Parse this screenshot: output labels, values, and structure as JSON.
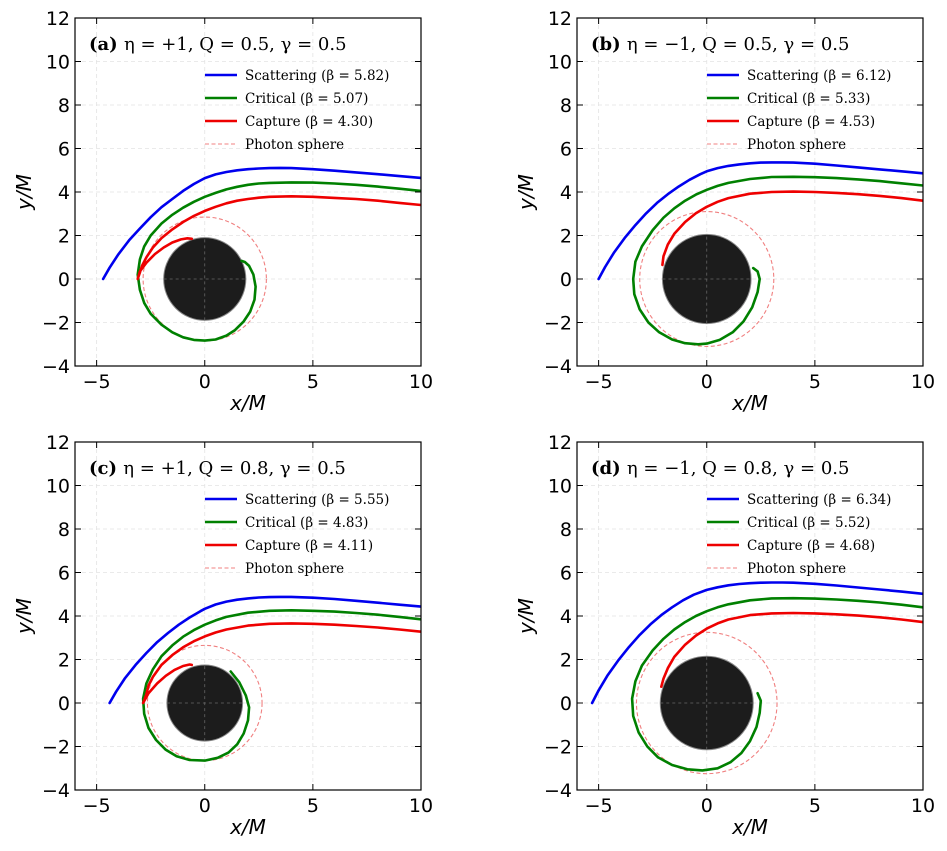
{
  "figure": {
    "background": "#ffffff",
    "grid": true,
    "tick_direction": "in"
  },
  "chart_data": [
    {
      "type": "line",
      "label": "(a)",
      "title": "η = +1, Q = 0.5, γ = 0.5",
      "xlabel": "x/M",
      "ylabel": "y/M",
      "xlim": [
        -6,
        10
      ],
      "ylim": [
        -4,
        12
      ],
      "xticks": [
        -5,
        0,
        5,
        10
      ],
      "xtick_labels": [
        "−5",
        "0",
        "5",
        "10"
      ],
      "yticks": [
        -4,
        -2,
        0,
        2,
        4,
        6,
        8,
        10,
        12
      ],
      "ytick_labels": [
        "−4",
        "−2",
        "0",
        "2",
        "4",
        "6",
        "8",
        "10",
        "12"
      ],
      "horizon_radius": 1.9,
      "photon_sphere_radius": 2.85,
      "series": [
        {
          "name": "Scattering",
          "legend": "Scattering (β = 5.82)",
          "beta": 5.82,
          "color": "#0000ee",
          "x": [
            -4.7,
            -4.4,
            -4.0,
            -3.5,
            -3.0,
            -2.5,
            -2.0,
            -1.5,
            -1.0,
            -0.5,
            0,
            0.5,
            1,
            1.5,
            2,
            2.5,
            3,
            3.5,
            4,
            5,
            6,
            7,
            8,
            9,
            10
          ],
          "y": [
            0,
            0.52,
            1.13,
            1.78,
            2.32,
            2.84,
            3.3,
            3.68,
            4.05,
            4.37,
            4.64,
            4.81,
            4.92,
            5.0,
            5.05,
            5.08,
            5.1,
            5.11,
            5.1,
            5.05,
            4.98,
            4.9,
            4.82,
            4.73,
            4.65
          ]
        },
        {
          "name": "Critical",
          "legend": "Critical (β = 5.07)",
          "beta": 5.07,
          "color": "#008000",
          "x": [
            10,
            9,
            8,
            7,
            6,
            5,
            4,
            3,
            2.5,
            2,
            1.5,
            1,
            0.5,
            0,
            -0.5,
            -1,
            -1.5,
            -2,
            -2.5,
            -2.8,
            -3.0,
            -3.1,
            -3.0,
            -2.8,
            -2.5,
            -2.0,
            -1.5,
            -1.0,
            -0.5,
            0,
            0.5,
            1.0,
            1.4,
            1.8,
            2.1,
            2.3,
            2.35,
            2.25,
            2.05,
            1.85,
            1.7
          ],
          "y": [
            4.05,
            4.15,
            4.25,
            4.33,
            4.39,
            4.43,
            4.44,
            4.42,
            4.39,
            4.33,
            4.24,
            4.12,
            3.96,
            3.78,
            3.55,
            3.28,
            2.95,
            2.55,
            2.0,
            1.5,
            0.9,
            0.2,
            -0.5,
            -1.1,
            -1.6,
            -2.1,
            -2.45,
            -2.68,
            -2.8,
            -2.83,
            -2.78,
            -2.6,
            -2.35,
            -1.95,
            -1.5,
            -0.95,
            -0.35,
            0.2,
            0.6,
            0.78,
            0.83
          ]
        },
        {
          "name": "Capture",
          "legend": "Capture (β = 4.30)",
          "beta": 4.3,
          "color": "#ee0000",
          "x": [
            10,
            9,
            8,
            7,
            6,
            5,
            4,
            3,
            2.5,
            2,
            1.5,
            1,
            0.5,
            0,
            -0.5,
            -1,
            -1.5,
            -2,
            -2.4,
            -2.7,
            -2.9,
            -3.0,
            -3.1,
            -3.0,
            -2.7,
            -2.3,
            -1.9,
            -1.5,
            -1.1,
            -0.8,
            -0.6
          ],
          "y": [
            3.4,
            3.5,
            3.6,
            3.68,
            3.73,
            3.78,
            3.8,
            3.78,
            3.74,
            3.68,
            3.6,
            3.48,
            3.32,
            3.13,
            2.9,
            2.62,
            2.28,
            1.88,
            1.45,
            1.0,
            0.6,
            0.3,
            0.0,
            0.35,
            0.75,
            1.15,
            1.45,
            1.68,
            1.82,
            1.87,
            1.85
          ]
        },
        {
          "name": "Photon sphere",
          "legend": "Photon sphere",
          "color": "#f08080",
          "style": "dashed"
        }
      ]
    },
    {
      "type": "line",
      "label": "(b)",
      "title": "η = −1, Q = 0.5, γ = 0.5",
      "xlabel": "x/M",
      "ylabel": "y/M",
      "xlim": [
        -6,
        10
      ],
      "ylim": [
        -4,
        12
      ],
      "xticks": [
        -5,
        0,
        5,
        10
      ],
      "xtick_labels": [
        "−5",
        "0",
        "5",
        "10"
      ],
      "yticks": [
        -4,
        -2,
        0,
        2,
        4,
        6,
        8,
        10,
        12
      ],
      "ytick_labels": [
        "−4",
        "−2",
        "0",
        "2",
        "4",
        "6",
        "8",
        "10",
        "12"
      ],
      "horizon_radius": 2.05,
      "photon_sphere_radius": 3.1,
      "series": [
        {
          "name": "Scattering",
          "legend": "Scattering (β = 6.12)",
          "beta": 6.12,
          "color": "#0000ee",
          "x": [
            -5.0,
            -4.7,
            -4.3,
            -3.8,
            -3.3,
            -2.8,
            -2.3,
            -1.8,
            -1.3,
            -0.8,
            -0.3,
            0,
            0.5,
            1,
            1.5,
            2,
            2.5,
            3,
            3.5,
            4,
            5,
            6,
            7,
            8,
            9,
            10
          ],
          "y": [
            0,
            0.55,
            1.2,
            1.88,
            2.48,
            3.02,
            3.5,
            3.9,
            4.25,
            4.56,
            4.82,
            4.95,
            5.1,
            5.2,
            5.27,
            5.32,
            5.35,
            5.36,
            5.36,
            5.35,
            5.3,
            5.22,
            5.13,
            5.04,
            4.95,
            4.86
          ]
        },
        {
          "name": "Critical",
          "legend": "Critical (β = 5.33)",
          "beta": 5.33,
          "color": "#008000",
          "x": [
            10,
            9,
            8,
            7,
            6,
            5,
            4,
            3,
            2,
            1,
            0.5,
            0,
            -0.5,
            -1,
            -1.5,
            -2,
            -2.5,
            -3,
            -3.3,
            -3.4,
            -3.35,
            -3.1,
            -2.7,
            -2.2,
            -1.6,
            -1,
            -0.4,
            0,
            0.6,
            1.2,
            1.7,
            2.1,
            2.35,
            2.45,
            2.35,
            2.15
          ],
          "y": [
            4.3,
            4.4,
            4.5,
            4.58,
            4.64,
            4.68,
            4.7,
            4.69,
            4.6,
            4.42,
            4.28,
            4.1,
            3.88,
            3.6,
            3.25,
            2.82,
            2.25,
            1.5,
            0.8,
            0.0,
            -0.7,
            -1.4,
            -2.0,
            -2.45,
            -2.78,
            -2.95,
            -3.0,
            -2.97,
            -2.8,
            -2.45,
            -1.95,
            -1.3,
            -0.6,
            0,
            0.35,
            0.5
          ]
        },
        {
          "name": "Capture",
          "legend": "Capture (β = 4.53)",
          "beta": 4.53,
          "color": "#ee0000",
          "x": [
            10,
            9,
            8,
            7,
            6,
            5,
            4,
            3,
            2,
            1,
            0.5,
            0,
            -0.5,
            -1,
            -1.5,
            -1.8,
            -2.0,
            -2.05
          ],
          "y": [
            3.6,
            3.72,
            3.82,
            3.9,
            3.96,
            4.0,
            4.02,
            4.0,
            3.92,
            3.72,
            3.55,
            3.32,
            3.02,
            2.62,
            2.08,
            1.58,
            1.05,
            0.65
          ]
        },
        {
          "name": "Photon sphere",
          "legend": "Photon sphere",
          "color": "#f08080",
          "style": "dashed"
        }
      ]
    },
    {
      "type": "line",
      "label": "(c)",
      "title": "η = +1, Q = 0.8, γ = 0.5",
      "xlabel": "x/M",
      "ylabel": "y/M",
      "xlim": [
        -6,
        10
      ],
      "ylim": [
        -4,
        12
      ],
      "xticks": [
        -5,
        0,
        5,
        10
      ],
      "xtick_labels": [
        "−5",
        "0",
        "5",
        "10"
      ],
      "yticks": [
        -4,
        -2,
        0,
        2,
        4,
        6,
        8,
        10,
        12
      ],
      "ytick_labels": [
        "−4",
        "−2",
        "0",
        "2",
        "4",
        "6",
        "8",
        "10",
        "12"
      ],
      "horizon_radius": 1.75,
      "photon_sphere_radius": 2.65,
      "series": [
        {
          "name": "Scattering",
          "legend": "Scattering (β = 5.55)",
          "beta": 5.55,
          "color": "#0000ee",
          "x": [
            -4.4,
            -4.1,
            -3.7,
            -3.2,
            -2.7,
            -2.2,
            -1.7,
            -1.2,
            -0.7,
            -0.2,
            0,
            0.5,
            1,
            1.5,
            2,
            2.5,
            3,
            3.5,
            4,
            5,
            6,
            7,
            8,
            9,
            10
          ],
          "y": [
            0,
            0.52,
            1.12,
            1.75,
            2.3,
            2.8,
            3.22,
            3.6,
            3.93,
            4.22,
            4.33,
            4.53,
            4.66,
            4.75,
            4.81,
            4.85,
            4.87,
            4.88,
            4.88,
            4.84,
            4.78,
            4.7,
            4.61,
            4.52,
            4.43
          ]
        },
        {
          "name": "Critical",
          "legend": "Critical (β = 4.83)",
          "beta": 4.83,
          "color": "#008000",
          "x": [
            10,
            9,
            8,
            7,
            6,
            5,
            4,
            3,
            2,
            1,
            0.5,
            0,
            -0.5,
            -1,
            -1.5,
            -2,
            -2.4,
            -2.7,
            -2.85,
            -2.8,
            -2.6,
            -2.25,
            -1.8,
            -1.3,
            -0.7,
            0,
            0.6,
            1.1,
            1.5,
            1.8,
            2.0,
            2.05,
            1.9,
            1.6,
            1.2
          ],
          "y": [
            3.85,
            3.96,
            4.06,
            4.14,
            4.2,
            4.24,
            4.26,
            4.24,
            4.15,
            3.96,
            3.8,
            3.6,
            3.35,
            3.05,
            2.65,
            2.15,
            1.55,
            0.9,
            0.2,
            -0.5,
            -1.15,
            -1.7,
            -2.15,
            -2.45,
            -2.62,
            -2.65,
            -2.52,
            -2.28,
            -1.9,
            -1.4,
            -0.8,
            -0.2,
            0.35,
            0.95,
            1.45
          ]
        },
        {
          "name": "Capture",
          "legend": "Capture (β = 4.11)",
          "beta": 4.11,
          "color": "#ee0000",
          "x": [
            10,
            9,
            8,
            7,
            6,
            5,
            4,
            3,
            2,
            1,
            0.5,
            0,
            -0.5,
            -1,
            -1.5,
            -2,
            -2.4,
            -2.6,
            -2.7,
            -2.85,
            -2.6,
            -2.2,
            -1.8,
            -1.4,
            -1.0,
            -0.7,
            -0.6
          ],
          "y": [
            3.28,
            3.38,
            3.47,
            3.54,
            3.6,
            3.64,
            3.66,
            3.64,
            3.56,
            3.38,
            3.24,
            3.06,
            2.84,
            2.56,
            2.2,
            1.75,
            1.2,
            0.8,
            0.4,
            0.0,
            0.45,
            0.9,
            1.25,
            1.52,
            1.7,
            1.77,
            1.75
          ]
        },
        {
          "name": "Photon sphere",
          "legend": "Photon sphere",
          "color": "#f08080",
          "style": "dashed"
        }
      ]
    },
    {
      "type": "line",
      "label": "(d)",
      "title": "η = −1, Q = 0.8, γ = 0.5",
      "xlabel": "x/M",
      "ylabel": "y/M",
      "xlim": [
        -6,
        10
      ],
      "ylim": [
        -4,
        12
      ],
      "xticks": [
        -5,
        0,
        5,
        10
      ],
      "xtick_labels": [
        "−5",
        "0",
        "5",
        "10"
      ],
      "yticks": [
        -4,
        -2,
        0,
        2,
        4,
        6,
        8,
        10,
        12
      ],
      "ytick_labels": [
        "−4",
        "−2",
        "0",
        "2",
        "4",
        "6",
        "8",
        "10",
        "12"
      ],
      "horizon_radius": 2.15,
      "photon_sphere_radius": 3.25,
      "series": [
        {
          "name": "Scattering",
          "legend": "Scattering (β = 6.34)",
          "beta": 6.34,
          "color": "#0000ee",
          "x": [
            -5.3,
            -5.0,
            -4.6,
            -4.1,
            -3.6,
            -3.1,
            -2.6,
            -2.1,
            -1.6,
            -1.1,
            -0.6,
            0,
            0.5,
            1,
            1.5,
            2,
            2.5,
            3,
            3.5,
            4,
            5,
            6,
            7,
            8,
            9,
            10
          ],
          "y": [
            0,
            0.58,
            1.25,
            1.95,
            2.57,
            3.13,
            3.62,
            4.04,
            4.4,
            4.72,
            4.98,
            5.2,
            5.32,
            5.41,
            5.47,
            5.51,
            5.53,
            5.54,
            5.54,
            5.53,
            5.48,
            5.4,
            5.31,
            5.22,
            5.12,
            5.02
          ]
        },
        {
          "name": "Critical",
          "legend": "Critical (β = 5.52)",
          "beta": 5.52,
          "color": "#008000",
          "x": [
            10,
            9,
            8,
            7,
            6,
            5,
            4,
            3,
            2,
            1,
            0.5,
            0,
            -0.5,
            -1,
            -1.5,
            -2,
            -2.5,
            -3,
            -3.3,
            -3.45,
            -3.4,
            -3.15,
            -2.75,
            -2.25,
            -1.6,
            -0.9,
            -0.2,
            0.5,
            1.1,
            1.6,
            2.0,
            2.3,
            2.45,
            2.5,
            2.35
          ],
          "y": [
            4.4,
            4.52,
            4.62,
            4.7,
            4.76,
            4.8,
            4.82,
            4.81,
            4.72,
            4.54,
            4.4,
            4.22,
            4.0,
            3.72,
            3.38,
            2.95,
            2.42,
            1.72,
            1.0,
            0.2,
            -0.6,
            -1.35,
            -2.0,
            -2.5,
            -2.85,
            -3.05,
            -3.1,
            -3.0,
            -2.72,
            -2.3,
            -1.75,
            -1.1,
            -0.45,
            0.1,
            0.45
          ]
        },
        {
          "name": "Capture",
          "legend": "Capture (β = 4.68)",
          "beta": 4.68,
          "color": "#ee0000",
          "x": [
            10,
            9,
            8,
            7,
            6,
            5,
            4,
            3,
            2,
            1,
            0.5,
            0,
            -0.5,
            -1,
            -1.5,
            -1.8,
            -2.0,
            -2.1
          ],
          "y": [
            3.72,
            3.84,
            3.94,
            4.02,
            4.08,
            4.12,
            4.14,
            4.12,
            4.04,
            3.84,
            3.66,
            3.42,
            3.1,
            2.68,
            2.12,
            1.6,
            1.12,
            0.75
          ]
        },
        {
          "name": "Photon sphere",
          "legend": "Photon sphere",
          "color": "#f08080",
          "style": "dashed"
        }
      ]
    }
  ]
}
